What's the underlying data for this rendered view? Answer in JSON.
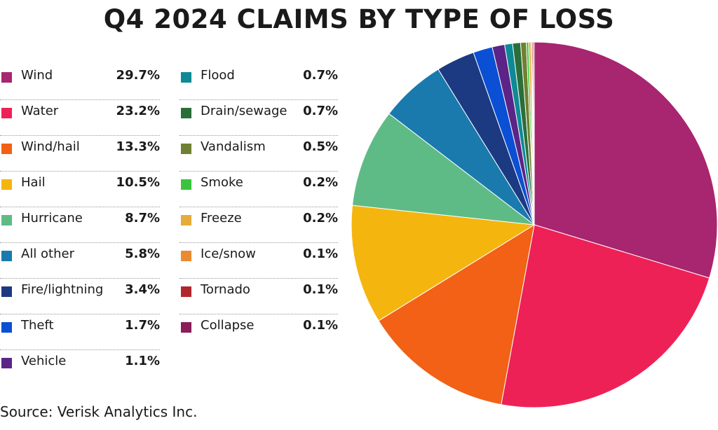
{
  "chart_data": {
    "type": "pie",
    "title": "Q4 2024 CLAIMS BY TYPE OF LOSS",
    "source": "Source: Verisk Analytics Inc.",
    "slices": [
      {
        "label": "Wind",
        "value": 29.7,
        "display": "29.7%",
        "color": "#a8256f"
      },
      {
        "label": "Water",
        "value": 23.2,
        "display": "23.2%",
        "color": "#ee2157"
      },
      {
        "label": "Wind/hail",
        "value": 13.3,
        "display": "13.3%",
        "color": "#f26116"
      },
      {
        "label": "Hail",
        "value": 10.5,
        "display": "10.5%",
        "color": "#f5b50f"
      },
      {
        "label": "Hurricane",
        "value": 8.7,
        "display": "8.7%",
        "color": "#5fbb86"
      },
      {
        "label": "All other",
        "value": 5.8,
        "display": "5.8%",
        "color": "#1a7aad"
      },
      {
        "label": "Fire/lightning",
        "value": 3.4,
        "display": "3.4%",
        "color": "#1b3a82"
      },
      {
        "label": "Theft",
        "value": 1.7,
        "display": "1.7%",
        "color": "#0a4fd4"
      },
      {
        "label": "Vehicle",
        "value": 1.1,
        "display": "1.1%",
        "color": "#5b2486"
      },
      {
        "label": "Flood",
        "value": 0.7,
        "display": "0.7%",
        "color": "#0e8a96"
      },
      {
        "label": "Drain/sewage",
        "value": 0.7,
        "display": "0.7%",
        "color": "#2a6e3a"
      },
      {
        "label": "Vandalism",
        "value": 0.5,
        "display": "0.5%",
        "color": "#6f8030"
      },
      {
        "label": "Smoke",
        "value": 0.2,
        "display": "0.2%",
        "color": "#3ac43d"
      },
      {
        "label": "Freeze",
        "value": 0.2,
        "display": "0.2%",
        "color": "#e6ac3a"
      },
      {
        "label": "Ice/snow",
        "value": 0.1,
        "display": "0.1%",
        "color": "#ec8a30"
      },
      {
        "label": "Tornado",
        "value": 0.1,
        "display": "0.1%",
        "color": "#b0282d"
      },
      {
        "label": "Collapse",
        "value": 0.1,
        "display": "0.1%",
        "color": "#8a1d5a"
      }
    ],
    "legend_placement": "left"
  }
}
